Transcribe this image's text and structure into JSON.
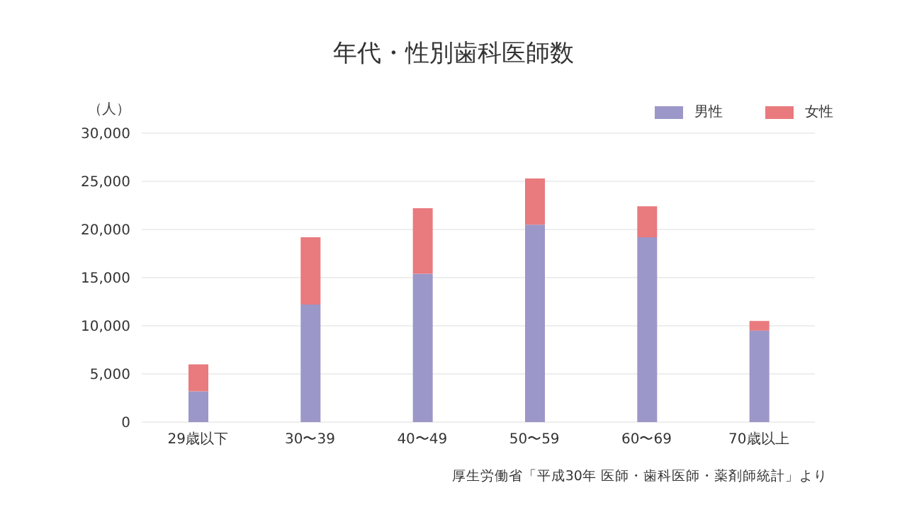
{
  "chart_data": {
    "type": "bar",
    "title": "年代・性別歯科医師数",
    "ylabel": "（人）",
    "categories": [
      "29歳以下",
      "30〜39",
      "40〜49",
      "50〜59",
      "60〜69",
      "70歳以上"
    ],
    "series": [
      {
        "name": "男性",
        "color": "#9b97c8",
        "values": [
          3200,
          12200,
          15400,
          20500,
          19200,
          9500
        ]
      },
      {
        "name": "女性",
        "color": "#e97a7e",
        "values": [
          2800,
          7000,
          6800,
          4800,
          3200,
          1000
        ]
      }
    ],
    "stacked": true,
    "ylim": [
      0,
      30000
    ],
    "yticks": [
      0,
      {
        "value": 5000,
        "label": "5,000"
      },
      {
        "value": 10000,
        "label": "10,000"
      },
      {
        "value": 15000,
        "label": "15,000"
      },
      {
        "value": 20000,
        "label": "20,000"
      },
      {
        "value": 25000,
        "label": "25,000"
      },
      {
        "value": 30000,
        "label": "30,000"
      }
    ],
    "grid": "y",
    "legend": "top right",
    "annotations": [
      "厚生労働省「平成30年 医師・歯科医師・薬剤師統計」より"
    ]
  }
}
